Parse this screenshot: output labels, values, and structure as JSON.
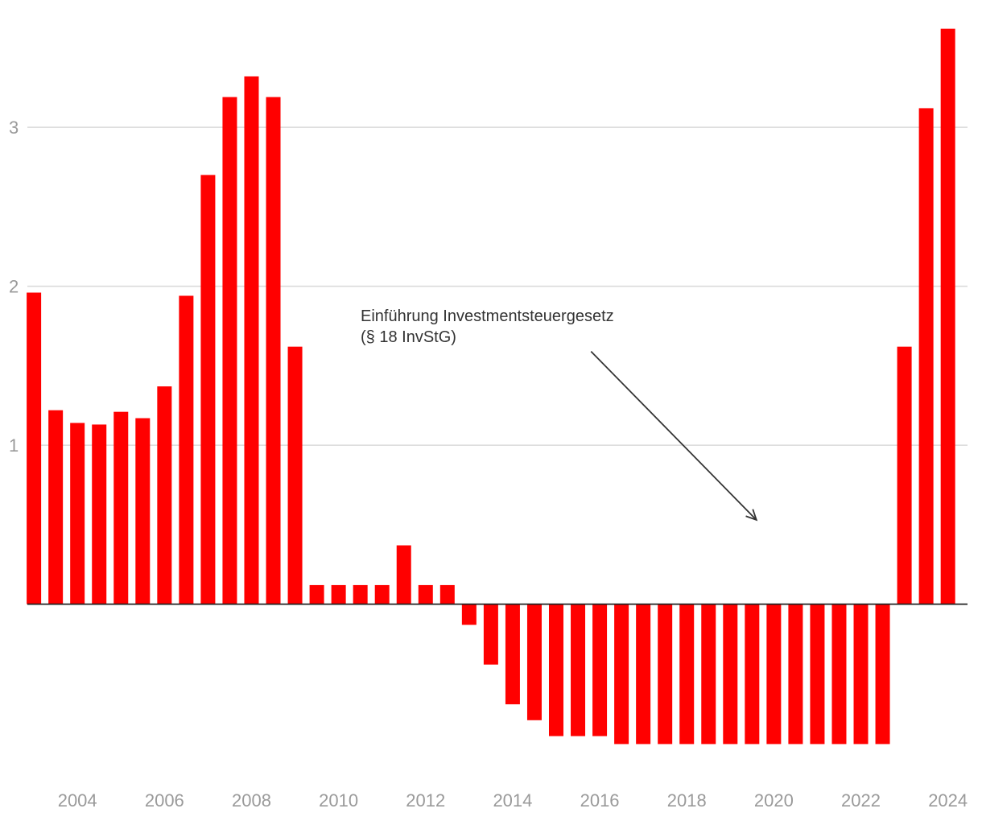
{
  "chart_data": {
    "type": "bar",
    "title": "",
    "xlabel": "",
    "ylabel": "",
    "ylim": [
      -1.05,
      3.75
    ],
    "yticks": [
      1,
      2,
      3
    ],
    "ytick_labels": [
      "1",
      "2",
      "3"
    ],
    "xlim": [
      2002.85,
      2024.45
    ],
    "xticks": [
      2004,
      2006,
      2008,
      2010,
      2012,
      2014,
      2016,
      2018,
      2020,
      2022,
      2024
    ],
    "xtick_labels": [
      "2004",
      "2006",
      "2008",
      "2010",
      "2012",
      "2014",
      "2016",
      "2018",
      "2020",
      "2022",
      "2024"
    ],
    "grid": true,
    "x": [
      2003.0,
      2003.5,
      2004.0,
      2004.5,
      2005.0,
      2005.5,
      2006.0,
      2006.5,
      2007.0,
      2007.5,
      2008.0,
      2008.5,
      2009.0,
      2009.5,
      2010.0,
      2010.5,
      2011.0,
      2011.5,
      2012.0,
      2012.5,
      2013.0,
      2013.5,
      2014.0,
      2014.5,
      2015.0,
      2015.5,
      2016.0,
      2016.5,
      2017.0,
      2017.5,
      2018.0,
      2018.5,
      2019.0,
      2019.5,
      2020.0,
      2020.5,
      2021.0,
      2021.5,
      2022.0,
      2022.5,
      2023.0,
      2023.5,
      2024.0
    ],
    "values": [
      1.96,
      1.22,
      1.14,
      1.13,
      1.21,
      1.17,
      1.37,
      1.94,
      2.7,
      3.19,
      3.32,
      3.19,
      1.62,
      0.12,
      0.12,
      0.12,
      0.12,
      0.37,
      0.12,
      0.12,
      -0.13,
      -0.38,
      -0.63,
      -0.73,
      -0.83,
      -0.83,
      -0.83,
      -0.88,
      -0.88,
      -0.88,
      -0.88,
      -0.88,
      -0.88,
      -0.88,
      -0.88,
      -0.88,
      -0.88,
      -0.88,
      -0.88,
      -0.88,
      1.62,
      3.12,
      3.62
    ],
    "bar_color": "#ff0000",
    "annotations": [
      {
        "text_lines": [
          "Einführung Investmentsteuergesetz",
          "(§ 18 InvStG)"
        ],
        "arrow_from": [
          2015.8,
          1.59
        ],
        "arrow_to": [
          2019.6,
          0.53
        ]
      }
    ]
  },
  "colors": {
    "bar": "#ff0000",
    "grid": "#d9d9d9",
    "zero_line": "#222222",
    "tick_text": "#9a9a9a",
    "annotation_text": "#333333",
    "arrow": "#333333"
  }
}
